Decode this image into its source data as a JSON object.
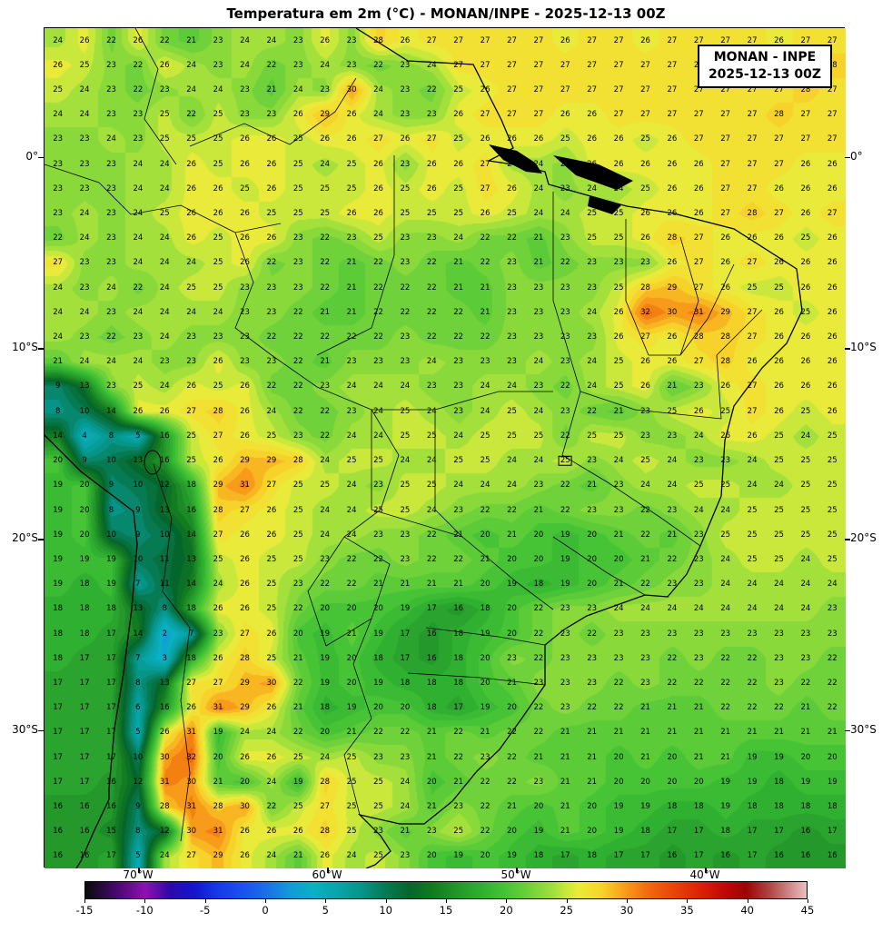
{
  "title": "Temperatura em 2m (°C) - MONAN/INPE - 2025-12-13 00Z",
  "info_box": {
    "line1": "MONAN - INPE",
    "line2": "2025-12-13 00Z"
  },
  "axes": {
    "lat_range": [
      6.8,
      -37.2
    ],
    "lon_range": [
      -75.0,
      -32.6
    ],
    "lat_ticks": [
      {
        "value": 0,
        "label": "0°"
      },
      {
        "value": -10,
        "label": "10°S"
      },
      {
        "value": -20,
        "label": "20°S"
      },
      {
        "value": -30,
        "label": "30°S"
      }
    ],
    "lon_ticks": [
      {
        "value": -70,
        "label": "70°W"
      },
      {
        "value": -60,
        "label": "60°W"
      },
      {
        "value": -50,
        "label": "50°W"
      },
      {
        "value": -40,
        "label": "40°W"
      }
    ]
  },
  "colorbar": {
    "orientation": "horizontal",
    "min": -15,
    "max": 45,
    "tick_values": [
      -15,
      -10,
      -5,
      0,
      5,
      10,
      15,
      20,
      25,
      30,
      35,
      40,
      45
    ],
    "stops": [
      {
        "value": -15,
        "color": "#0a0a0a"
      },
      {
        "value": -12.5,
        "color": "#43096b"
      },
      {
        "value": -10,
        "color": "#8f11b0"
      },
      {
        "value": -8,
        "color": "#2f0aa8"
      },
      {
        "value": -6,
        "color": "#1414cc"
      },
      {
        "value": -4,
        "color": "#1638e8"
      },
      {
        "value": -2,
        "color": "#1a50f0"
      },
      {
        "value": 0,
        "color": "#1a6ee8"
      },
      {
        "value": 2,
        "color": "#129ad8"
      },
      {
        "value": 4,
        "color": "#0ab0c4"
      },
      {
        "value": 6,
        "color": "#08a4a8"
      },
      {
        "value": 8,
        "color": "#079488"
      },
      {
        "value": 10,
        "color": "#067a52"
      },
      {
        "value": 12,
        "color": "#05662c"
      },
      {
        "value": 14,
        "color": "#137c20"
      },
      {
        "value": 16,
        "color": "#24982b"
      },
      {
        "value": 18,
        "color": "#30b030"
      },
      {
        "value": 20,
        "color": "#46c436"
      },
      {
        "value": 22,
        "color": "#70d23a"
      },
      {
        "value": 24,
        "color": "#a4e03c"
      },
      {
        "value": 25,
        "color": "#cae83c"
      },
      {
        "value": 26,
        "color": "#e9ea3a"
      },
      {
        "value": 27,
        "color": "#f2e032"
      },
      {
        "value": 28,
        "color": "#f6d22a"
      },
      {
        "value": 29,
        "color": "#f8b622"
      },
      {
        "value": 30,
        "color": "#f89a1a"
      },
      {
        "value": 31,
        "color": "#f58012"
      },
      {
        "value": 32,
        "color": "#f0660c"
      },
      {
        "value": 34,
        "color": "#e84408"
      },
      {
        "value": 36,
        "color": "#dc2404"
      },
      {
        "value": 38,
        "color": "#c40808"
      },
      {
        "value": 40,
        "color": "#9c0404"
      },
      {
        "value": 42,
        "color": "#b04848"
      },
      {
        "value": 44,
        "color": "#d89898"
      },
      {
        "value": 45,
        "color": "#e8c0c0"
      }
    ]
  },
  "chart_data": {
    "type": "heatmap",
    "title": "Temperatura em 2m (°C) - MONAN/INPE - 2025-12-13 00Z",
    "unit": "°C",
    "lon_range": [
      -75.0,
      -32.6
    ],
    "lat_range": [
      6.8,
      -37.2
    ],
    "colorbar_range": [
      -15,
      45
    ],
    "highlighted_cell": {
      "row": 17,
      "col": 19
    },
    "values": [
      [
        24,
        26,
        22,
        26,
        22,
        21,
        23,
        24,
        24,
        23,
        26,
        23,
        28,
        26,
        27,
        27,
        27,
        27,
        27,
        26,
        27,
        27,
        26,
        27,
        27,
        27,
        27,
        26,
        27,
        27
      ],
      [
        26,
        25,
        23,
        22,
        26,
        24,
        23,
        24,
        22,
        23,
        24,
        23,
        22,
        23,
        24,
        27,
        27,
        27,
        27,
        27,
        27,
        27,
        27,
        27,
        27,
        27,
        27,
        27,
        27,
        28
      ],
      [
        25,
        24,
        23,
        22,
        23,
        24,
        24,
        23,
        21,
        24,
        23,
        30,
        24,
        23,
        22,
        25,
        26,
        27,
        27,
        27,
        27,
        27,
        27,
        27,
        27,
        27,
        27,
        27,
        28,
        27
      ],
      [
        24,
        24,
        23,
        23,
        25,
        22,
        25,
        23,
        23,
        26,
        29,
        26,
        24,
        23,
        23,
        26,
        27,
        27,
        27,
        26,
        26,
        27,
        27,
        27,
        27,
        27,
        27,
        28,
        27,
        27
      ],
      [
        23,
        23,
        24,
        23,
        25,
        25,
        25,
        26,
        26,
        25,
        26,
        26,
        27,
        26,
        27,
        25,
        26,
        26,
        26,
        25,
        26,
        26,
        25,
        26,
        27,
        27,
        27,
        27,
        27,
        27
      ],
      [
        23,
        23,
        23,
        24,
        24,
        26,
        25,
        26,
        26,
        25,
        24,
        25,
        26,
        23,
        26,
        26,
        27,
        24,
        24,
        23,
        26,
        26,
        26,
        26,
        26,
        27,
        27,
        27,
        26,
        26
      ],
      [
        23,
        23,
        23,
        24,
        24,
        26,
        26,
        25,
        26,
        25,
        25,
        25,
        26,
        25,
        26,
        25,
        27,
        26,
        24,
        23,
        24,
        24,
        25,
        26,
        26,
        27,
        27,
        26,
        26,
        26
      ],
      [
        23,
        24,
        23,
        24,
        25,
        26,
        26,
        26,
        25,
        25,
        25,
        26,
        26,
        25,
        25,
        25,
        26,
        25,
        24,
        24,
        25,
        25,
        26,
        26,
        26,
        27,
        28,
        27,
        26,
        27
      ],
      [
        22,
        24,
        23,
        24,
        24,
        26,
        25,
        26,
        26,
        23,
        22,
        23,
        25,
        23,
        23,
        24,
        22,
        22,
        21,
        23,
        25,
        25,
        26,
        28,
        27,
        26,
        26,
        26,
        25,
        26
      ],
      [
        27,
        23,
        23,
        24,
        24,
        24,
        25,
        26,
        22,
        23,
        22,
        21,
        22,
        23,
        22,
        21,
        22,
        23,
        21,
        22,
        23,
        23,
        23,
        26,
        27,
        26,
        27,
        26,
        26,
        26
      ],
      [
        24,
        23,
        24,
        22,
        24,
        25,
        25,
        23,
        23,
        23,
        22,
        21,
        22,
        22,
        22,
        21,
        21,
        23,
        23,
        23,
        23,
        25,
        28,
        29,
        27,
        26,
        25,
        25,
        26,
        26
      ],
      [
        24,
        24,
        23,
        24,
        24,
        24,
        24,
        23,
        23,
        22,
        21,
        21,
        22,
        22,
        22,
        22,
        21,
        23,
        23,
        23,
        24,
        26,
        32,
        30,
        31,
        29,
        27,
        26,
        25,
        26
      ],
      [
        24,
        23,
        22,
        23,
        24,
        23,
        23,
        23,
        22,
        22,
        22,
        22,
        22,
        23,
        22,
        22,
        22,
        23,
        23,
        23,
        23,
        26,
        27,
        26,
        28,
        28,
        27,
        26,
        26,
        26
      ],
      [
        21,
        24,
        24,
        24,
        23,
        23,
        26,
        23,
        23,
        22,
        21,
        23,
        23,
        23,
        24,
        23,
        23,
        23,
        24,
        23,
        24,
        25,
        26,
        26,
        27,
        28,
        26,
        26,
        26,
        26
      ],
      [
        9,
        13,
        23,
        25,
        24,
        26,
        25,
        26,
        22,
        22,
        23,
        24,
        24,
        24,
        23,
        23,
        24,
        24,
        23,
        22,
        24,
        25,
        26,
        21,
        23,
        26,
        27,
        26,
        26,
        26
      ],
      [
        8,
        10,
        14,
        26,
        26,
        27,
        28,
        26,
        24,
        22,
        22,
        23,
        24,
        25,
        24,
        23,
        24,
        25,
        24,
        23,
        22,
        21,
        23,
        25,
        26,
        25,
        27,
        26,
        25,
        26
      ],
      [
        14,
        4,
        8,
        5,
        16,
        25,
        27,
        26,
        25,
        23,
        22,
        24,
        24,
        25,
        25,
        24,
        25,
        25,
        25,
        22,
        25,
        25,
        23,
        23,
        24,
        26,
        26,
        25,
        24,
        25
      ],
      [
        20,
        9,
        10,
        13,
        16,
        25,
        26,
        29,
        29,
        28,
        24,
        25,
        25,
        24,
        24,
        25,
        25,
        24,
        24,
        25,
        23,
        24,
        25,
        24,
        23,
        23,
        24,
        25,
        25,
        25
      ],
      [
        19,
        20,
        9,
        10,
        12,
        18,
        29,
        31,
        27,
        25,
        25,
        24,
        23,
        25,
        25,
        24,
        24,
        24,
        23,
        22,
        21,
        23,
        24,
        24,
        25,
        25,
        24,
        24,
        25,
        25
      ],
      [
        19,
        20,
        8,
        9,
        13,
        16,
        28,
        27,
        26,
        25,
        24,
        24,
        25,
        25,
        24,
        23,
        22,
        22,
        21,
        22,
        23,
        23,
        22,
        23,
        24,
        24,
        25,
        25,
        25,
        25
      ],
      [
        19,
        20,
        10,
        9,
        10,
        14,
        27,
        26,
        26,
        25,
        24,
        24,
        23,
        23,
        22,
        21,
        20,
        21,
        20,
        19,
        20,
        21,
        22,
        21,
        23,
        25,
        25,
        25,
        25,
        25
      ],
      [
        19,
        19,
        19,
        10,
        11,
        13,
        25,
        26,
        25,
        25,
        23,
        22,
        22,
        23,
        22,
        22,
        21,
        20,
        20,
        19,
        20,
        20,
        21,
        22,
        23,
        24,
        25,
        25,
        24,
        25
      ],
      [
        19,
        18,
        19,
        7,
        11,
        14,
        24,
        26,
        25,
        23,
        22,
        22,
        21,
        21,
        21,
        21,
        20,
        19,
        18,
        19,
        20,
        21,
        22,
        23,
        23,
        24,
        24,
        24,
        24,
        24
      ],
      [
        18,
        18,
        18,
        13,
        8,
        18,
        26,
        26,
        25,
        22,
        20,
        20,
        20,
        19,
        17,
        16,
        18,
        20,
        22,
        23,
        23,
        24,
        24,
        24,
        24,
        24,
        24,
        24,
        24,
        23
      ],
      [
        18,
        18,
        17,
        14,
        2,
        7,
        23,
        27,
        26,
        20,
        19,
        21,
        19,
        17,
        16,
        18,
        19,
        20,
        22,
        23,
        22,
        23,
        23,
        23,
        23,
        23,
        23,
        23,
        23,
        23
      ],
      [
        18,
        17,
        17,
        7,
        3,
        18,
        26,
        28,
        25,
        21,
        19,
        20,
        18,
        17,
        16,
        18,
        20,
        23,
        22,
        23,
        23,
        23,
        23,
        22,
        23,
        22,
        22,
        23,
        23,
        22
      ],
      [
        17,
        17,
        17,
        8,
        13,
        27,
        27,
        29,
        30,
        22,
        19,
        20,
        19,
        18,
        18,
        18,
        20,
        21,
        23,
        23,
        23,
        22,
        23,
        22,
        22,
        22,
        22,
        23,
        22,
        22
      ],
      [
        17,
        17,
        17,
        6,
        16,
        26,
        31,
        29,
        26,
        21,
        18,
        19,
        20,
        20,
        18,
        17,
        19,
        20,
        22,
        23,
        22,
        22,
        21,
        21,
        21,
        22,
        22,
        22,
        21,
        22
      ],
      [
        17,
        17,
        17,
        5,
        26,
        31,
        19,
        24,
        24,
        22,
        20,
        21,
        22,
        22,
        21,
        22,
        21,
        22,
        22,
        21,
        21,
        21,
        21,
        21,
        21,
        21,
        21,
        21,
        21,
        21
      ],
      [
        17,
        17,
        17,
        10,
        30,
        32,
        20,
        26,
        26,
        25,
        24,
        25,
        23,
        23,
        21,
        22,
        23,
        22,
        21,
        21,
        21,
        20,
        21,
        20,
        21,
        21,
        19,
        19,
        20,
        20
      ],
      [
        17,
        17,
        16,
        12,
        31,
        30,
        21,
        20,
        24,
        19,
        28,
        25,
        25,
        24,
        20,
        21,
        22,
        22,
        23,
        21,
        21,
        20,
        20,
        20,
        20,
        19,
        19,
        18,
        19,
        19
      ],
      [
        16,
        16,
        16,
        9,
        28,
        31,
        28,
        30,
        22,
        25,
        27,
        25,
        25,
        24,
        21,
        23,
        22,
        21,
        20,
        21,
        20,
        19,
        19,
        18,
        18,
        19,
        18,
        18,
        18,
        18
      ],
      [
        16,
        16,
        15,
        8,
        12,
        30,
        31,
        26,
        26,
        26,
        28,
        25,
        23,
        21,
        23,
        25,
        22,
        20,
        19,
        21,
        20,
        19,
        18,
        17,
        17,
        18,
        17,
        17,
        16,
        17
      ],
      [
        16,
        16,
        17,
        5,
        24,
        27,
        29,
        26,
        24,
        21,
        26,
        24,
        25,
        23,
        20,
        19,
        20,
        19,
        18,
        17,
        18,
        17,
        17,
        16,
        17,
        16,
        17,
        16,
        16,
        16
      ]
    ]
  }
}
